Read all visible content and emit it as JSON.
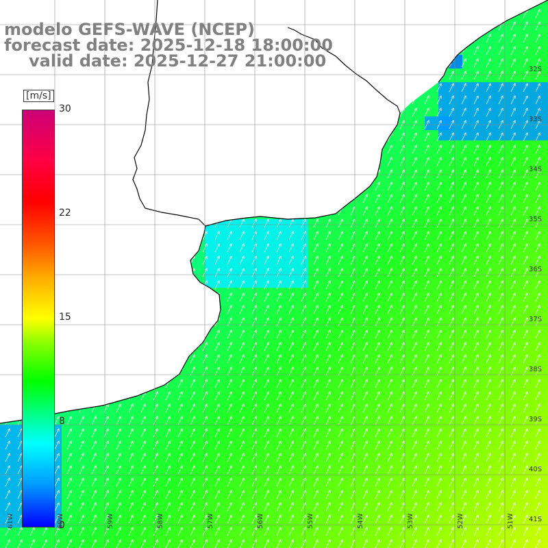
{
  "title": {
    "model": "modelo GEFS-WAVE (NCEP)",
    "forecast_date": "forecast date: 2025-12-18 18:00:00",
    "valid_date": "valid date: 2025-12-27 21:00:00"
  },
  "colorbar": {
    "unit": "[m/s]",
    "min": 0,
    "max": 30,
    "ticks": [
      "30",
      "22",
      "15",
      "8",
      "0"
    ],
    "colors": [
      "#0000ff",
      "#00ffff",
      "#00ff00",
      "#ffff00",
      "#ff0000",
      "#cc0077"
    ]
  },
  "axes": {
    "lon_labels": [
      "61W",
      "60W",
      "59W",
      "58W",
      "57W",
      "56W",
      "55W",
      "54W",
      "53W",
      "52W",
      "51W"
    ],
    "lat_labels": [
      "32S",
      "33S",
      "34S",
      "35S",
      "36S",
      "37S",
      "38S",
      "39S",
      "40S",
      "41S"
    ],
    "lon_range": [
      -61.5,
      -50.5
    ],
    "lat_range": [
      -41.5,
      -30.5
    ]
  },
  "field": {
    "variable": "wind speed",
    "direction": "towards north-east",
    "sea_color": "#00ff33",
    "land_color": "#ffffff",
    "coastline_color": "#000000",
    "grid_color": "#888888"
  }
}
